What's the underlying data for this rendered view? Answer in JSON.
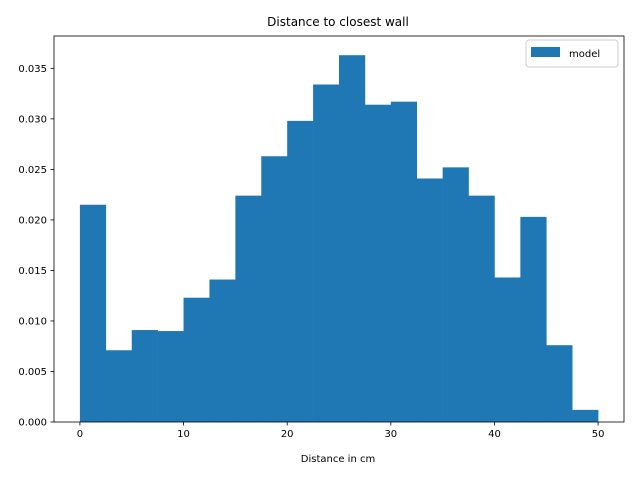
{
  "chart_data": {
    "type": "bar",
    "title": "Distance to closest wall",
    "xlabel": "Distance in cm",
    "ylabel": "",
    "xlim": [
      -2.5,
      52.5
    ],
    "ylim": [
      0,
      0.0382
    ],
    "x_ticks": [
      0,
      10,
      20,
      30,
      40,
      50
    ],
    "x_tick_labels": [
      "0",
      "10",
      "20",
      "30",
      "40",
      "50"
    ],
    "y_ticks": [
      0,
      0.005,
      0.01,
      0.015,
      0.02,
      0.025,
      0.03,
      0.035
    ],
    "y_tick_labels": [
      "0.000",
      "0.005",
      "0.010",
      "0.015",
      "0.020",
      "0.025",
      "0.030",
      "0.035"
    ],
    "bin_edges": [
      0,
      2.5,
      5,
      7.5,
      10,
      12.5,
      15,
      17.5,
      20,
      22.5,
      25,
      27.5,
      30,
      32.5,
      35,
      37.5,
      40,
      42.5,
      45,
      47.5,
      50
    ],
    "series": [
      {
        "name": "model",
        "color": "#1f77b4",
        "values": [
          0.0215,
          0.0071,
          0.0091,
          0.009,
          0.0123,
          0.0141,
          0.0224,
          0.0263,
          0.0298,
          0.0334,
          0.0363,
          0.0314,
          0.0317,
          0.0241,
          0.0252,
          0.0224,
          0.0143,
          0.0203,
          0.0076,
          0.0012
        ]
      }
    ],
    "grid": false,
    "legend_position": "top-right"
  }
}
